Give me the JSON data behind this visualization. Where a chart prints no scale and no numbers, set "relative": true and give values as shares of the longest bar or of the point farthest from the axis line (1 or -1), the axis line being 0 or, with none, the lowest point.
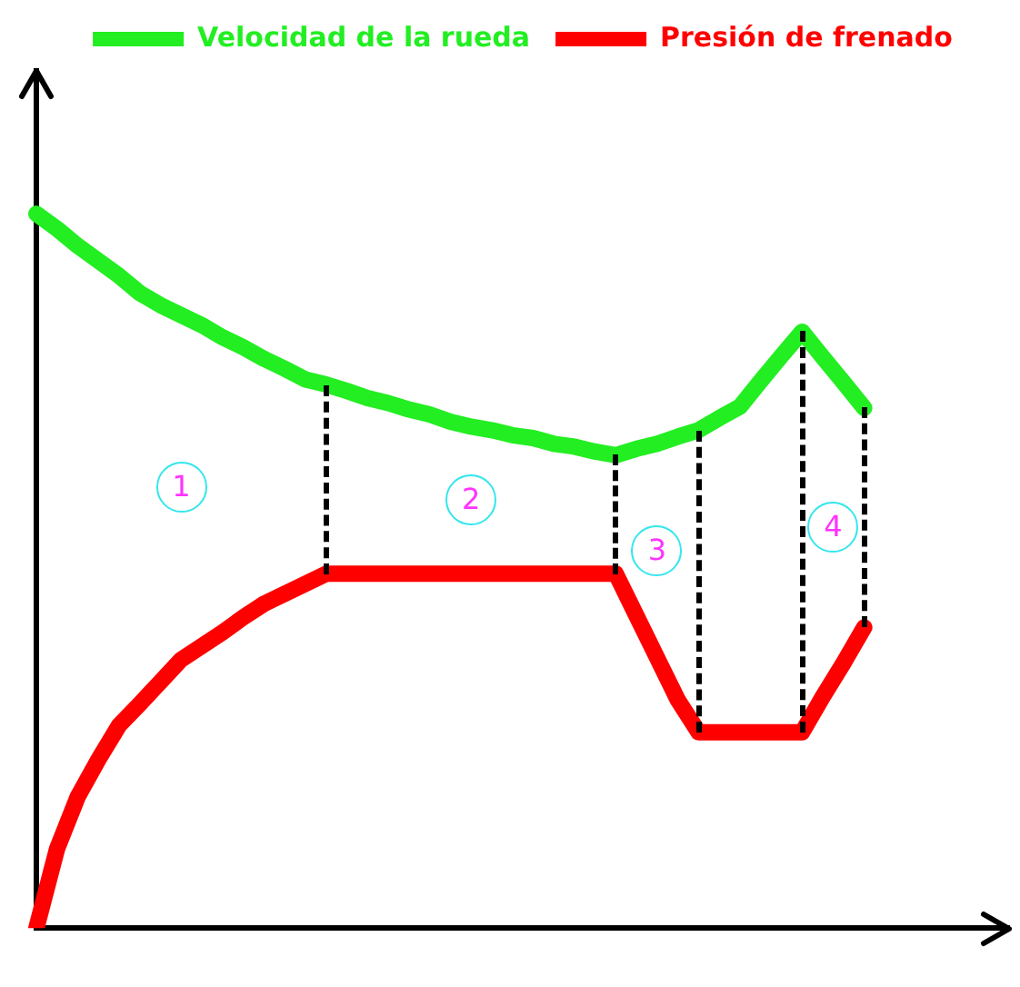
{
  "chart_data": {
    "type": "line",
    "relative": true,
    "categories": [
      null,
      null,
      null,
      null,
      null,
      null,
      null,
      null,
      null,
      null,
      null,
      null,
      null,
      null,
      null,
      null,
      null,
      null,
      null,
      null,
      null,
      null,
      null,
      null,
      null,
      null,
      null,
      null,
      null,
      null,
      null,
      null,
      null,
      null,
      null,
      null,
      null,
      null,
      null,
      null,
      null,
      null,
      null,
      null,
      null,
      null,
      null,
      null
    ],
    "grid": false,
    "legend": "top",
    "marker": "none",
    "line_style": "solid",
    "series": [
      {
        "name": "Velocidad de la rueda",
        "color": "#22ee22",
        "values": [
          1,
          0.979,
          0.955,
          0.934,
          0.913,
          0.889,
          0.872,
          0.858,
          0.844,
          0.827,
          0.813,
          0.797,
          0.783,
          0.768,
          0.761,
          0.752,
          0.742,
          0.735,
          0.726,
          0.719,
          0.709,
          0.702,
          0.697,
          0.69,
          0.686,
          0.678,
          0.674,
          0.667,
          0.662,
          0.671,
          0.678,
          0.688,
          0.697,
          0.714,
          0.73,
          0.766,
          0.801,
          0.835,
          0.799,
          0.764,
          0.728,
          null,
          null,
          null,
          null,
          null,
          null,
          null
        ]
      },
      {
        "name": "Presión de frenado",
        "color": "#ff0000",
        "values": [
          0,
          0.111,
          0.184,
          0.236,
          0.284,
          0.314,
          0.345,
          0.376,
          0.395,
          0.414,
          0.435,
          0.454,
          0.468,
          0.482,
          0.496,
          0.496,
          0.496,
          0.496,
          0.496,
          0.496,
          0.496,
          0.496,
          0.496,
          0.496,
          0.496,
          0.496,
          0.496,
          0.496,
          0.496,
          0.437,
          0.378,
          0.319,
          0.274,
          0.274,
          0.274,
          0.274,
          0.274,
          0.274,
          0.324,
          0.371,
          0.421,
          null,
          null,
          null,
          null,
          null,
          null,
          null
        ]
      }
    ],
    "annotations": [
      "1",
      "2",
      "3",
      "4"
    ]
  }
}
